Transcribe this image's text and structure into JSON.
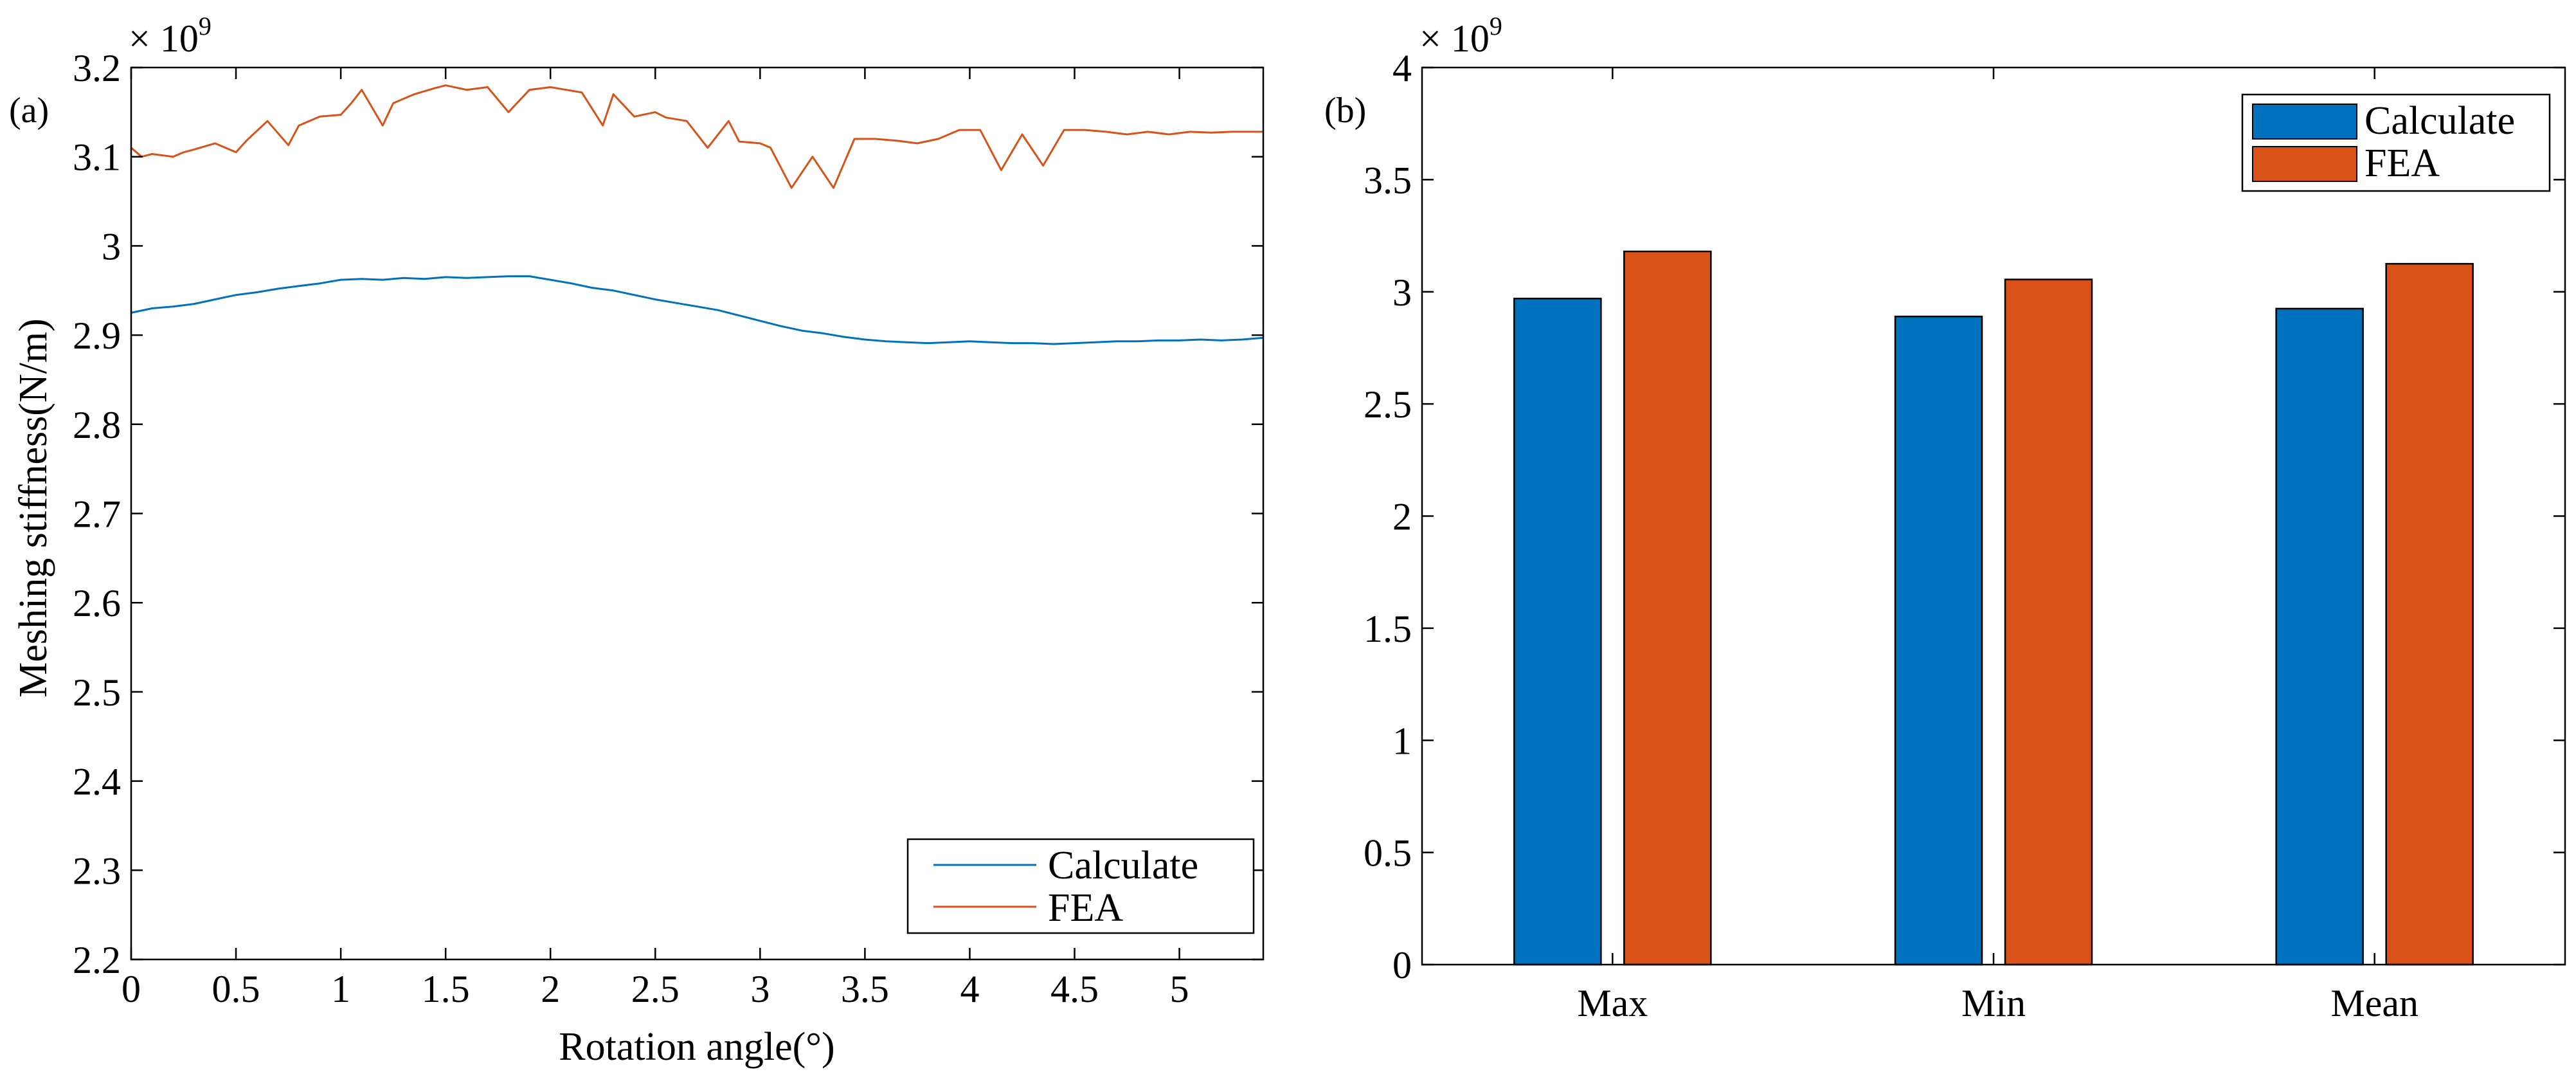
{
  "chart_data": [
    {
      "type": "line",
      "panel_label": "(a)",
      "xlabel": "Rotation angle(°)",
      "ylabel": "Meshing stiffness(N/m)",
      "y_multiplier": "× 10",
      "y_multiplier_exp": "9",
      "xlim": [
        0,
        5.4
      ],
      "ylim": [
        2.2,
        3.2
      ],
      "xticks": [
        "0",
        "0.5",
        "1",
        "1.5",
        "2",
        "2.5",
        "3",
        "3.5",
        "4",
        "4.5",
        "5"
      ],
      "yticks": [
        "2.2",
        "2.3",
        "2.4",
        "2.5",
        "2.6",
        "2.7",
        "2.8",
        "2.9",
        "3",
        "3.1",
        "3.2"
      ],
      "legend_position": "bottom-right",
      "grid": false,
      "series": [
        {
          "name": "Calculate",
          "color": "#0072BD",
          "x": [
            0,
            0.1,
            0.2,
            0.3,
            0.4,
            0.5,
            0.6,
            0.7,
            0.8,
            0.9,
            1.0,
            1.1,
            1.2,
            1.3,
            1.4,
            1.5,
            1.6,
            1.7,
            1.8,
            1.9,
            2.0,
            2.1,
            2.2,
            2.3,
            2.4,
            2.5,
            2.6,
            2.7,
            2.8,
            2.9,
            3.0,
            3.1,
            3.2,
            3.3,
            3.4,
            3.5,
            3.6,
            3.7,
            3.8,
            3.9,
            4.0,
            4.1,
            4.2,
            4.3,
            4.4,
            4.5,
            4.6,
            4.7,
            4.8,
            4.9,
            5.0,
            5.1,
            5.2,
            5.3,
            5.4
          ],
          "y": [
            2.925,
            2.93,
            2.932,
            2.935,
            2.94,
            2.945,
            2.948,
            2.952,
            2.955,
            2.958,
            2.962,
            2.963,
            2.962,
            2.964,
            2.963,
            2.965,
            2.964,
            2.965,
            2.966,
            2.966,
            2.962,
            2.958,
            2.953,
            2.95,
            2.945,
            2.94,
            2.936,
            2.932,
            2.928,
            2.922,
            2.916,
            2.91,
            2.905,
            2.902,
            2.898,
            2.895,
            2.893,
            2.892,
            2.891,
            2.892,
            2.893,
            2.892,
            2.891,
            2.891,
            2.89,
            2.891,
            2.892,
            2.893,
            2.893,
            2.894,
            2.894,
            2.895,
            2.894,
            2.895,
            2.897
          ]
        },
        {
          "name": "FEA",
          "color": "#D95319",
          "x": [
            0,
            0.05,
            0.1,
            0.2,
            0.25,
            0.3,
            0.4,
            0.5,
            0.55,
            0.65,
            0.75,
            0.8,
            0.9,
            1.0,
            1.05,
            1.1,
            1.2,
            1.25,
            1.35,
            1.45,
            1.5,
            1.6,
            1.7,
            1.8,
            1.9,
            2.0,
            2.05,
            2.15,
            2.25,
            2.3,
            2.4,
            2.5,
            2.55,
            2.65,
            2.75,
            2.85,
            2.9,
            3.0,
            3.05,
            3.15,
            3.25,
            3.35,
            3.45,
            3.55,
            3.65,
            3.75,
            3.85,
            3.95,
            4.05,
            4.15,
            4.25,
            4.35,
            4.45,
            4.55,
            4.65,
            4.75,
            4.85,
            4.95,
            5.05,
            5.15,
            5.25,
            5.4
          ],
          "y": [
            3.11,
            3.1,
            3.103,
            3.1,
            3.105,
            3.108,
            3.115,
            3.105,
            3.118,
            3.14,
            3.113,
            3.135,
            3.145,
            3.147,
            3.16,
            3.175,
            3.135,
            3.16,
            3.17,
            3.177,
            3.18,
            3.175,
            3.178,
            3.15,
            3.175,
            3.178,
            3.176,
            3.172,
            3.135,
            3.17,
            3.145,
            3.15,
            3.144,
            3.14,
            3.11,
            3.14,
            3.117,
            3.115,
            3.11,
            3.065,
            3.1,
            3.065,
            3.12,
            3.12,
            3.118,
            3.115,
            3.12,
            3.13,
            3.13,
            3.085,
            3.125,
            3.09,
            3.13,
            3.13,
            3.128,
            3.125,
            3.128,
            3.125,
            3.128,
            3.127,
            3.128,
            3.128
          ]
        }
      ]
    },
    {
      "type": "bar",
      "panel_label": "(b)",
      "xlabel": "",
      "ylabel": "",
      "y_multiplier": "× 10",
      "y_multiplier_exp": "9",
      "categories": [
        "Max",
        "Min",
        "Mean"
      ],
      "ylim": [
        0,
        4
      ],
      "yticks": [
        "0",
        "0.5",
        "1",
        "1.5",
        "2",
        "2.5",
        "3",
        "3.5",
        "4"
      ],
      "legend_position": "top-right",
      "grid": false,
      "series": [
        {
          "name": "Calculate",
          "color": "#0072BD",
          "values": [
            2.97,
            2.89,
            2.925
          ]
        },
        {
          "name": "FEA",
          "color": "#D95319",
          "values": [
            3.18,
            3.055,
            3.125
          ]
        }
      ]
    }
  ]
}
